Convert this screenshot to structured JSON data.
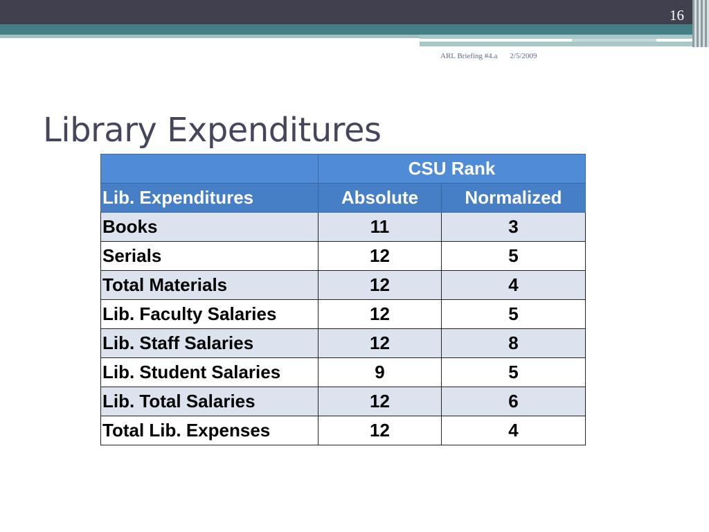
{
  "slide": {
    "number": "16",
    "footer_left": "ARL Briefing #4.a",
    "footer_right": "2/5/2009",
    "title": "Library Expenditures"
  },
  "table": {
    "group_header": "CSU Rank",
    "columns": [
      "Lib. Expenditures",
      "Absolute",
      "Normalized"
    ],
    "rows": [
      [
        "Books",
        "11",
        "3"
      ],
      [
        "Serials",
        "12",
        "5"
      ],
      [
        "Total Materials",
        "12",
        "4"
      ],
      [
        "Lib. Faculty Salaries",
        "12",
        "5"
      ],
      [
        "Lib. Staff Salaries",
        "12",
        "8"
      ],
      [
        "Lib. Student Salaries",
        "9",
        "5"
      ],
      [
        "Lib. Total Salaries",
        "12",
        "6"
      ],
      [
        "Total Lib. Expenses",
        "12",
        "4"
      ]
    ]
  }
}
